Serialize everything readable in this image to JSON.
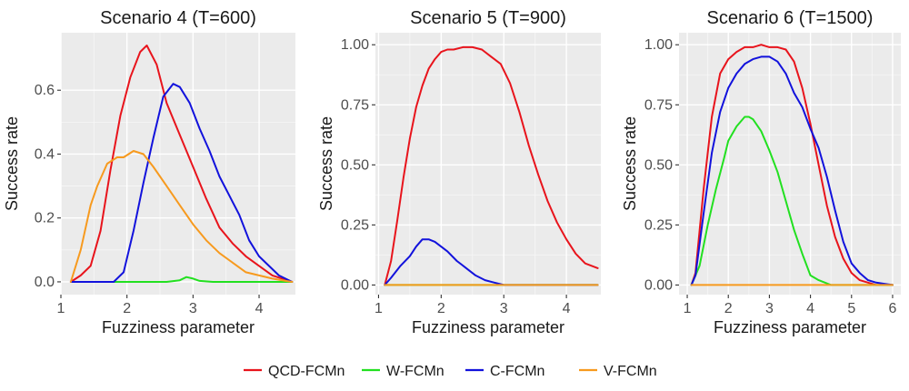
{
  "chart_data": [
    {
      "type": "line",
      "title": "Scenario 4 (T=600)",
      "xlabel": "Fuzziness parameter",
      "ylabel": "Success rate",
      "xlim": [
        1.0,
        4.55
      ],
      "ylim": [
        -0.04,
        0.78
      ],
      "xticks": [
        1,
        2,
        3,
        4
      ],
      "xtick_labels": [
        "1",
        "2",
        "3",
        "4"
      ],
      "yticks": [
        0.0,
        0.2,
        0.4,
        0.6
      ],
      "ytick_labels": [
        "0.0",
        "0.2",
        "0.4",
        "0.6"
      ],
      "series": [
        {
          "name": "QCD-FCMn",
          "x": [
            1.15,
            1.3,
            1.45,
            1.6,
            1.75,
            1.9,
            2.05,
            2.2,
            2.3,
            2.45,
            2.6,
            2.8,
            3.0,
            3.2,
            3.4,
            3.6,
            3.8,
            4.0,
            4.2,
            4.35,
            4.5
          ],
          "y": [
            0.0,
            0.02,
            0.05,
            0.16,
            0.35,
            0.52,
            0.64,
            0.72,
            0.74,
            0.68,
            0.56,
            0.46,
            0.36,
            0.26,
            0.17,
            0.12,
            0.08,
            0.05,
            0.02,
            0.01,
            0.0
          ]
        },
        {
          "name": "W-FCMn",
          "x": [
            1.15,
            2.4,
            2.6,
            2.8,
            2.9,
            3.0,
            3.1,
            3.3,
            4.5
          ],
          "y": [
            0.0,
            0.0,
            0.0,
            0.005,
            0.015,
            0.01,
            0.003,
            0.0,
            0.0
          ]
        },
        {
          "name": "C-FCMn",
          "x": [
            1.15,
            1.8,
            1.95,
            2.1,
            2.25,
            2.4,
            2.55,
            2.7,
            2.8,
            2.95,
            3.1,
            3.25,
            3.4,
            3.55,
            3.7,
            3.85,
            4.0,
            4.15,
            4.3,
            4.5
          ],
          "y": [
            0.0,
            0.0,
            0.03,
            0.16,
            0.31,
            0.45,
            0.58,
            0.62,
            0.61,
            0.56,
            0.48,
            0.41,
            0.33,
            0.27,
            0.21,
            0.13,
            0.08,
            0.05,
            0.02,
            0.0
          ]
        },
        {
          "name": "V-FCMn",
          "x": [
            1.15,
            1.3,
            1.45,
            1.55,
            1.7,
            1.85,
            1.95,
            2.1,
            2.25,
            2.4,
            2.6,
            2.8,
            3.0,
            3.2,
            3.4,
            3.6,
            3.8,
            4.0,
            4.2,
            4.4,
            4.5
          ],
          "y": [
            0.0,
            0.1,
            0.24,
            0.3,
            0.37,
            0.39,
            0.39,
            0.41,
            0.4,
            0.36,
            0.3,
            0.24,
            0.18,
            0.13,
            0.09,
            0.06,
            0.03,
            0.02,
            0.01,
            0.003,
            0.0
          ]
        }
      ]
    },
    {
      "type": "line",
      "title": "Scenario 5 (T=900)",
      "xlabel": "Fuzziness parameter",
      "ylabel": "Success rate",
      "xlim": [
        0.95,
        4.55
      ],
      "ylim": [
        -0.04,
        1.05
      ],
      "xticks": [
        1,
        2,
        3,
        4
      ],
      "xtick_labels": [
        "1",
        "2",
        "3",
        "4"
      ],
      "yticks": [
        0.0,
        0.25,
        0.5,
        0.75,
        1.0
      ],
      "ytick_labels": [
        "0.00",
        "0.25",
        "0.50",
        "0.75",
        "1.00"
      ],
      "series": [
        {
          "name": "QCD-FCMn",
          "x": [
            1.1,
            1.2,
            1.3,
            1.4,
            1.5,
            1.6,
            1.7,
            1.8,
            1.9,
            2.0,
            2.1,
            2.2,
            2.35,
            2.5,
            2.65,
            2.8,
            2.95,
            3.1,
            3.25,
            3.4,
            3.55,
            3.7,
            3.85,
            4.0,
            4.15,
            4.3,
            4.5
          ],
          "y": [
            0.0,
            0.1,
            0.27,
            0.45,
            0.61,
            0.74,
            0.83,
            0.9,
            0.94,
            0.97,
            0.98,
            0.98,
            0.99,
            0.99,
            0.98,
            0.95,
            0.92,
            0.84,
            0.72,
            0.58,
            0.46,
            0.35,
            0.26,
            0.19,
            0.13,
            0.09,
            0.07
          ]
        },
        {
          "name": "W-FCMn",
          "x": [
            1.1,
            4.5
          ],
          "y": [
            0.0,
            0.0
          ]
        },
        {
          "name": "C-FCMn",
          "x": [
            1.1,
            1.2,
            1.35,
            1.5,
            1.6,
            1.7,
            1.8,
            1.9,
            2.0,
            2.1,
            2.25,
            2.4,
            2.55,
            2.7,
            2.85,
            3.0,
            4.5
          ],
          "y": [
            0.0,
            0.03,
            0.08,
            0.12,
            0.16,
            0.19,
            0.19,
            0.18,
            0.16,
            0.14,
            0.1,
            0.07,
            0.04,
            0.02,
            0.01,
            0.0,
            0.0
          ]
        },
        {
          "name": "V-FCMn",
          "x": [
            1.1,
            4.5
          ],
          "y": [
            0.0,
            0.0
          ]
        }
      ]
    },
    {
      "type": "line",
      "title": "Scenario 6 (T=1500)",
      "xlabel": "Fuzziness parameter",
      "ylabel": "Success rate",
      "xlim": [
        0.8,
        6.2
      ],
      "ylim": [
        -0.04,
        1.05
      ],
      "xticks": [
        1,
        2,
        3,
        4,
        5,
        6
      ],
      "xtick_labels": [
        "1",
        "2",
        "3",
        "4",
        "5",
        "6"
      ],
      "yticks": [
        0.0,
        0.25,
        0.5,
        0.75,
        1.0
      ],
      "ytick_labels": [
        "0.00",
        "0.25",
        "0.50",
        "0.75",
        "1.00"
      ],
      "series": [
        {
          "name": "QCD-FCMn",
          "x": [
            1.1,
            1.2,
            1.4,
            1.6,
            1.8,
            2.0,
            2.2,
            2.4,
            2.6,
            2.8,
            3.0,
            3.2,
            3.4,
            3.6,
            3.8,
            4.0,
            4.2,
            4.4,
            4.6,
            4.8,
            5.0,
            5.2,
            5.4,
            5.6,
            5.8,
            6.0
          ],
          "y": [
            0.0,
            0.05,
            0.4,
            0.7,
            0.88,
            0.94,
            0.97,
            0.99,
            0.99,
            1.0,
            0.99,
            0.99,
            0.98,
            0.93,
            0.82,
            0.67,
            0.5,
            0.33,
            0.2,
            0.11,
            0.05,
            0.02,
            0.01,
            0.0,
            0.0,
            0.0
          ]
        },
        {
          "name": "W-FCMn",
          "x": [
            1.1,
            1.3,
            1.5,
            1.7,
            1.9,
            2.0,
            2.2,
            2.4,
            2.5,
            2.6,
            2.8,
            3.0,
            3.2,
            3.4,
            3.6,
            3.8,
            4.0,
            4.2,
            4.5,
            5.0,
            6.0
          ],
          "y": [
            0.0,
            0.08,
            0.25,
            0.4,
            0.53,
            0.6,
            0.66,
            0.7,
            0.7,
            0.69,
            0.64,
            0.56,
            0.47,
            0.35,
            0.23,
            0.13,
            0.04,
            0.02,
            0.0,
            0.0,
            0.0
          ]
        },
        {
          "name": "C-FCMn",
          "x": [
            1.1,
            1.2,
            1.4,
            1.6,
            1.8,
            2.0,
            2.2,
            2.4,
            2.6,
            2.8,
            3.0,
            3.2,
            3.4,
            3.6,
            3.8,
            4.0,
            4.2,
            4.4,
            4.6,
            4.8,
            5.0,
            5.2,
            5.4,
            5.6,
            5.8,
            6.0
          ],
          "y": [
            0.0,
            0.04,
            0.3,
            0.55,
            0.72,
            0.82,
            0.88,
            0.92,
            0.94,
            0.95,
            0.95,
            0.93,
            0.88,
            0.8,
            0.74,
            0.65,
            0.57,
            0.45,
            0.31,
            0.18,
            0.09,
            0.05,
            0.02,
            0.01,
            0.005,
            0.0
          ]
        },
        {
          "name": "V-FCMn",
          "x": [
            1.1,
            6.0
          ],
          "y": [
            0.0,
            0.0
          ]
        }
      ]
    }
  ],
  "legend": {
    "position": "bottom",
    "items": [
      {
        "name": "QCD-FCMn",
        "color": "#e8141c"
      },
      {
        "name": "W-FCMn",
        "color": "#22e020"
      },
      {
        "name": "C-FCMn",
        "color": "#1212dc"
      },
      {
        "name": "V-FCMn",
        "color": "#f79a1e"
      }
    ]
  }
}
